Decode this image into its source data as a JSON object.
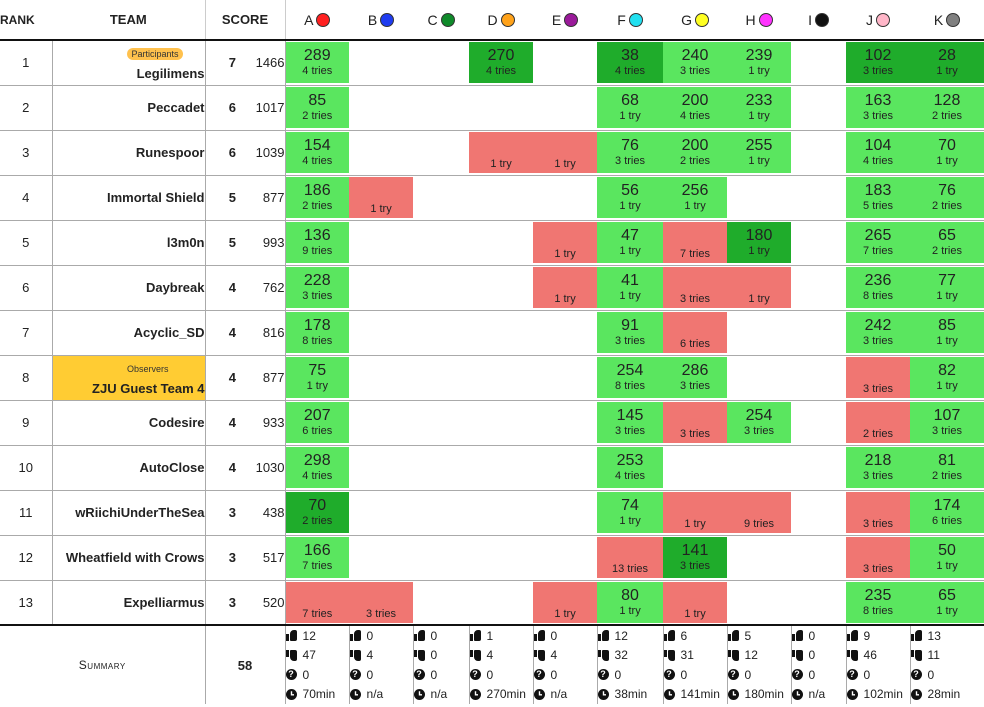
{
  "headers": {
    "rank": "RANK",
    "team": "TEAM",
    "score": "SCORE"
  },
  "problems": [
    {
      "label": "A",
      "color": "#ff2020"
    },
    {
      "label": "B",
      "color": "#1f3cf0"
    },
    {
      "label": "C",
      "color": "#0f8a2a"
    },
    {
      "label": "D",
      "color": "#ffa21a"
    },
    {
      "label": "E",
      "color": "#9a1a9a"
    },
    {
      "label": "F",
      "color": "#22e0f0"
    },
    {
      "label": "G",
      "color": "#ffff22"
    },
    {
      "label": "H",
      "color": "#ff33ff"
    },
    {
      "label": "I",
      "color": "#111111"
    },
    {
      "label": "J",
      "color": "#ffb6c8"
    },
    {
      "label": "K",
      "color": "#808080"
    }
  ],
  "rows": [
    {
      "rank": "1",
      "team": "Legilimens",
      "badge": "Participants",
      "category": "participant",
      "solved": "7",
      "penalty": "1466",
      "cells": [
        {
          "s": "solved",
          "t": "289",
          "tr": "4 tries"
        },
        {
          "s": "empty"
        },
        {
          "s": "empty"
        },
        {
          "s": "first",
          "t": "270",
          "tr": "4 tries"
        },
        {
          "s": "empty"
        },
        {
          "s": "first",
          "t": "38",
          "tr": "4 tries"
        },
        {
          "s": "solved",
          "t": "240",
          "tr": "3 tries"
        },
        {
          "s": "solved",
          "t": "239",
          "tr": "1 try"
        },
        {
          "s": "empty"
        },
        {
          "s": "first",
          "t": "102",
          "tr": "3 tries"
        },
        {
          "s": "first",
          "t": "28",
          "tr": "1 try"
        }
      ]
    },
    {
      "rank": "2",
      "team": "Peccadet",
      "badge": "",
      "category": "participant",
      "solved": "6",
      "penalty": "1017",
      "cells": [
        {
          "s": "solved",
          "t": "85",
          "tr": "2 tries"
        },
        {
          "s": "empty"
        },
        {
          "s": "empty"
        },
        {
          "s": "empty"
        },
        {
          "s": "empty"
        },
        {
          "s": "solved",
          "t": "68",
          "tr": "1 try"
        },
        {
          "s": "solved",
          "t": "200",
          "tr": "4 tries"
        },
        {
          "s": "solved",
          "t": "233",
          "tr": "1 try"
        },
        {
          "s": "empty"
        },
        {
          "s": "solved",
          "t": "163",
          "tr": "3 tries"
        },
        {
          "s": "solved",
          "t": "128",
          "tr": "2 tries"
        }
      ]
    },
    {
      "rank": "3",
      "team": "Runespoor",
      "badge": "",
      "category": "participant",
      "solved": "6",
      "penalty": "1039",
      "cells": [
        {
          "s": "solved",
          "t": "154",
          "tr": "4 tries"
        },
        {
          "s": "empty"
        },
        {
          "s": "empty"
        },
        {
          "s": "failed",
          "tr": "1 try"
        },
        {
          "s": "failed",
          "tr": "1 try"
        },
        {
          "s": "solved",
          "t": "76",
          "tr": "3 tries"
        },
        {
          "s": "solved",
          "t": "200",
          "tr": "2 tries"
        },
        {
          "s": "solved",
          "t": "255",
          "tr": "1 try"
        },
        {
          "s": "empty"
        },
        {
          "s": "solved",
          "t": "104",
          "tr": "4 tries"
        },
        {
          "s": "solved",
          "t": "70",
          "tr": "1 try"
        }
      ]
    },
    {
      "rank": "4",
      "team": "Immortal Shield",
      "badge": "",
      "category": "participant",
      "solved": "5",
      "penalty": "877",
      "cells": [
        {
          "s": "solved",
          "t": "186",
          "tr": "2 tries"
        },
        {
          "s": "failed",
          "tr": "1 try"
        },
        {
          "s": "empty"
        },
        {
          "s": "empty"
        },
        {
          "s": "empty"
        },
        {
          "s": "solved",
          "t": "56",
          "tr": "1 try"
        },
        {
          "s": "solved",
          "t": "256",
          "tr": "1 try"
        },
        {
          "s": "empty"
        },
        {
          "s": "empty"
        },
        {
          "s": "solved",
          "t": "183",
          "tr": "5 tries"
        },
        {
          "s": "solved",
          "t": "76",
          "tr": "2 tries"
        }
      ]
    },
    {
      "rank": "5",
      "team": "l3m0n",
      "badge": "",
      "category": "participant",
      "solved": "5",
      "penalty": "993",
      "cells": [
        {
          "s": "solved",
          "t": "136",
          "tr": "9 tries"
        },
        {
          "s": "empty"
        },
        {
          "s": "empty"
        },
        {
          "s": "empty"
        },
        {
          "s": "failed",
          "tr": "1 try"
        },
        {
          "s": "solved",
          "t": "47",
          "tr": "1 try"
        },
        {
          "s": "failed",
          "tr": "7 tries"
        },
        {
          "s": "first",
          "t": "180",
          "tr": "1 try"
        },
        {
          "s": "empty"
        },
        {
          "s": "solved",
          "t": "265",
          "tr": "7 tries"
        },
        {
          "s": "solved",
          "t": "65",
          "tr": "2 tries"
        }
      ]
    },
    {
      "rank": "6",
      "team": "Daybreak",
      "badge": "",
      "category": "participant",
      "solved": "4",
      "penalty": "762",
      "cells": [
        {
          "s": "solved",
          "t": "228",
          "tr": "3 tries"
        },
        {
          "s": "empty"
        },
        {
          "s": "empty"
        },
        {
          "s": "empty"
        },
        {
          "s": "failed",
          "tr": "1 try"
        },
        {
          "s": "solved",
          "t": "41",
          "tr": "1 try"
        },
        {
          "s": "failed",
          "tr": "3 tries"
        },
        {
          "s": "failed",
          "tr": "1 try"
        },
        {
          "s": "empty"
        },
        {
          "s": "solved",
          "t": "236",
          "tr": "8 tries"
        },
        {
          "s": "solved",
          "t": "77",
          "tr": "1 try"
        }
      ]
    },
    {
      "rank": "7",
      "team": "Acyclic_SD",
      "badge": "",
      "category": "participant",
      "solved": "4",
      "penalty": "816",
      "cells": [
        {
          "s": "solved",
          "t": "178",
          "tr": "8 tries"
        },
        {
          "s": "empty"
        },
        {
          "s": "empty"
        },
        {
          "s": "empty"
        },
        {
          "s": "empty"
        },
        {
          "s": "solved",
          "t": "91",
          "tr": "3 tries"
        },
        {
          "s": "failed",
          "tr": "6 tries"
        },
        {
          "s": "empty"
        },
        {
          "s": "empty"
        },
        {
          "s": "solved",
          "t": "242",
          "tr": "3 tries"
        },
        {
          "s": "solved",
          "t": "85",
          "tr": "1 try"
        }
      ]
    },
    {
      "rank": "8",
      "team": "ZJU Guest Team 4",
      "badge": "Observers",
      "category": "observer",
      "solved": "4",
      "penalty": "877",
      "cells": [
        {
          "s": "solved",
          "t": "75",
          "tr": "1 try"
        },
        {
          "s": "empty"
        },
        {
          "s": "empty"
        },
        {
          "s": "empty"
        },
        {
          "s": "empty"
        },
        {
          "s": "solved",
          "t": "254",
          "tr": "8 tries"
        },
        {
          "s": "solved",
          "t": "286",
          "tr": "3 tries"
        },
        {
          "s": "empty"
        },
        {
          "s": "empty"
        },
        {
          "s": "failed",
          "tr": "3 tries"
        },
        {
          "s": "solved",
          "t": "82",
          "tr": "1 try"
        }
      ]
    },
    {
      "rank": "9",
      "team": "Codesire",
      "badge": "",
      "category": "participant",
      "solved": "4",
      "penalty": "933",
      "cells": [
        {
          "s": "solved",
          "t": "207",
          "tr": "6 tries"
        },
        {
          "s": "empty"
        },
        {
          "s": "empty"
        },
        {
          "s": "empty"
        },
        {
          "s": "empty"
        },
        {
          "s": "solved",
          "t": "145",
          "tr": "3 tries"
        },
        {
          "s": "failed",
          "tr": "3 tries"
        },
        {
          "s": "solved",
          "t": "254",
          "tr": "3 tries"
        },
        {
          "s": "empty"
        },
        {
          "s": "failed",
          "tr": "2 tries"
        },
        {
          "s": "solved",
          "t": "107",
          "tr": "3 tries"
        }
      ]
    },
    {
      "rank": "10",
      "team": "AutoClose",
      "badge": "",
      "category": "participant",
      "solved": "4",
      "penalty": "1030",
      "cells": [
        {
          "s": "solved",
          "t": "298",
          "tr": "4 tries"
        },
        {
          "s": "empty"
        },
        {
          "s": "empty"
        },
        {
          "s": "empty"
        },
        {
          "s": "empty"
        },
        {
          "s": "solved",
          "t": "253",
          "tr": "4 tries"
        },
        {
          "s": "empty"
        },
        {
          "s": "empty"
        },
        {
          "s": "empty"
        },
        {
          "s": "solved",
          "t": "218",
          "tr": "3 tries"
        },
        {
          "s": "solved",
          "t": "81",
          "tr": "2 tries"
        }
      ]
    },
    {
      "rank": "11",
      "team": "wRiichiUnderTheSea",
      "badge": "",
      "category": "participant",
      "solved": "3",
      "penalty": "438",
      "cells": [
        {
          "s": "first",
          "t": "70",
          "tr": "2 tries"
        },
        {
          "s": "empty"
        },
        {
          "s": "empty"
        },
        {
          "s": "empty"
        },
        {
          "s": "empty"
        },
        {
          "s": "solved",
          "t": "74",
          "tr": "1 try"
        },
        {
          "s": "failed",
          "tr": "1 try"
        },
        {
          "s": "failed",
          "tr": "9 tries"
        },
        {
          "s": "empty"
        },
        {
          "s": "failed",
          "tr": "3 tries"
        },
        {
          "s": "solved",
          "t": "174",
          "tr": "6 tries"
        }
      ]
    },
    {
      "rank": "12",
      "team": "Wheatfield with Crows",
      "badge": "",
      "category": "participant",
      "solved": "3",
      "penalty": "517",
      "cells": [
        {
          "s": "solved",
          "t": "166",
          "tr": "7 tries"
        },
        {
          "s": "empty"
        },
        {
          "s": "empty"
        },
        {
          "s": "empty"
        },
        {
          "s": "empty"
        },
        {
          "s": "failed",
          "tr": "13 tries"
        },
        {
          "s": "first",
          "t": "141",
          "tr": "3 tries"
        },
        {
          "s": "empty"
        },
        {
          "s": "empty"
        },
        {
          "s": "failed",
          "tr": "3 tries"
        },
        {
          "s": "solved",
          "t": "50",
          "tr": "1 try"
        }
      ]
    },
    {
      "rank": "13",
      "team": "Expelliarmus",
      "badge": "",
      "category": "participant",
      "solved": "3",
      "penalty": "520",
      "cells": [
        {
          "s": "failed",
          "tr": "7 tries"
        },
        {
          "s": "failed",
          "tr": "3 tries"
        },
        {
          "s": "empty"
        },
        {
          "s": "empty"
        },
        {
          "s": "failed",
          "tr": "1 try"
        },
        {
          "s": "solved",
          "t": "80",
          "tr": "1 try"
        },
        {
          "s": "failed",
          "tr": "1 try"
        },
        {
          "s": "empty"
        },
        {
          "s": "empty"
        },
        {
          "s": "solved",
          "t": "235",
          "tr": "8 tries"
        },
        {
          "s": "solved",
          "t": "65",
          "tr": "1 try"
        }
      ]
    }
  ],
  "summary": {
    "label": "Summary",
    "total": "58",
    "per_problem": [
      {
        "accepted": "12",
        "rejected": "47",
        "pending": "0",
        "first": "70min"
      },
      {
        "accepted": "0",
        "rejected": "4",
        "pending": "0",
        "first": "n/a"
      },
      {
        "accepted": "0",
        "rejected": "0",
        "pending": "0",
        "first": "n/a"
      },
      {
        "accepted": "1",
        "rejected": "4",
        "pending": "0",
        "first": "270min"
      },
      {
        "accepted": "0",
        "rejected": "4",
        "pending": "0",
        "first": "n/a"
      },
      {
        "accepted": "12",
        "rejected": "32",
        "pending": "0",
        "first": "38min"
      },
      {
        "accepted": "6",
        "rejected": "31",
        "pending": "0",
        "first": "141min"
      },
      {
        "accepted": "5",
        "rejected": "12",
        "pending": "0",
        "first": "180min"
      },
      {
        "accepted": "0",
        "rejected": "0",
        "pending": "0",
        "first": "n/a"
      },
      {
        "accepted": "9",
        "rejected": "46",
        "pending": "0",
        "first": "102min"
      },
      {
        "accepted": "13",
        "rejected": "11",
        "pending": "0",
        "first": "28min"
      }
    ]
  },
  "icons": {
    "accepted": "thumbs-up-icon",
    "rejected": "thumbs-down-icon",
    "pending": "question-icon",
    "first": "clock-icon",
    "pending_glyph": "?"
  }
}
